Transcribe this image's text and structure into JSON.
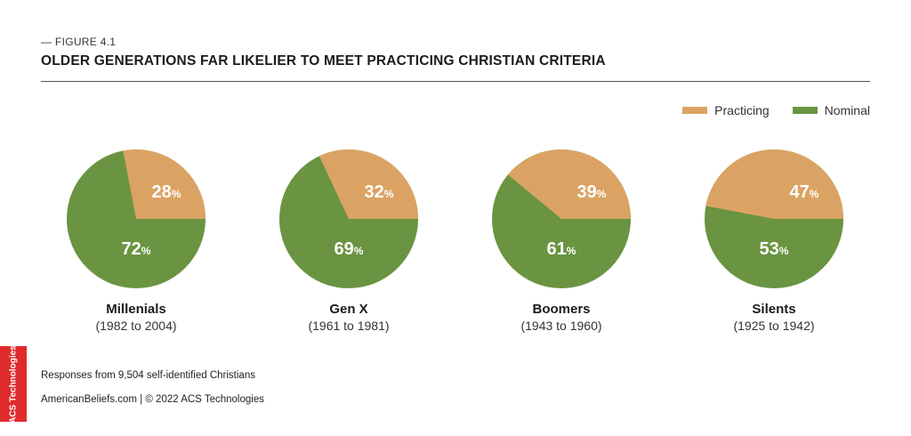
{
  "figure_label": "— FIGURE 4.1",
  "title": "OLDER GENERATIONS FAR LIKELIER TO MEET PRACTICING CHRISTIAN CRITERIA",
  "legend": [
    {
      "name": "Practicing",
      "color": "#dba363"
    },
    {
      "name": "Nominal",
      "color": "#6a9441"
    }
  ],
  "chart_data": {
    "type": "pie",
    "series_names": [
      "Practicing",
      "Nominal"
    ],
    "colors": {
      "Practicing": "#dba363",
      "Nominal": "#6a9441"
    },
    "pies": [
      {
        "category": "Millenials",
        "range": "(1982 to 2004)",
        "practicing": 28,
        "nominal": 72
      },
      {
        "category": "Gen X",
        "range": "(1961 to 1981)",
        "practicing": 32,
        "nominal": 69
      },
      {
        "category": "Boomers",
        "range": "(1943 to 1960)",
        "practicing": 39,
        "nominal": 61
      },
      {
        "category": "Silents",
        "range": "(1925 to 1942)",
        "practicing": 47,
        "nominal": 53
      }
    ],
    "value_suffix": "%",
    "legend_position": "top-right"
  },
  "footnote": "Responses from 9,504 self-identified Christians",
  "credit": "AmericanBeliefs.com | © 2022 ACS Technologies",
  "brand_text": "ACS Technologies"
}
